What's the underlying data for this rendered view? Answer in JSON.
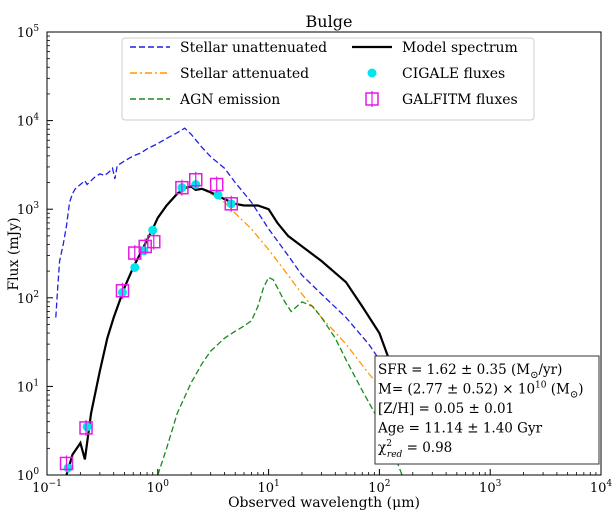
{
  "chart_data": {
    "type": "line",
    "title": "Bulge",
    "xlabel": "Observed wavelength (μm)",
    "ylabel": "Flux (mJy)",
    "xscale": "log",
    "yscale": "log",
    "xlim": [
      0.1,
      10000
    ],
    "ylim": [
      1,
      100000
    ],
    "x_ticks": [
      {
        "value": 0.1,
        "base": "10",
        "exp": "−1"
      },
      {
        "value": 1,
        "base": "10",
        "exp": "0"
      },
      {
        "value": 10,
        "base": "10",
        "exp": "1"
      },
      {
        "value": 100,
        "base": "10",
        "exp": "2"
      },
      {
        "value": 1000,
        "base": "10",
        "exp": "3"
      },
      {
        "value": 10000,
        "base": "10",
        "exp": "4"
      }
    ],
    "y_ticks": [
      {
        "value": 1,
        "base": "10",
        "exp": "0"
      },
      {
        "value": 10,
        "base": "10",
        "exp": "1"
      },
      {
        "value": 100,
        "base": "10",
        "exp": "2"
      },
      {
        "value": 1000,
        "base": "10",
        "exp": "3"
      },
      {
        "value": 10000,
        "base": "10",
        "exp": "4"
      },
      {
        "value": 100000,
        "base": "10",
        "exp": "5"
      }
    ],
    "legend_position": "top",
    "series": [
      {
        "name": "Stellar unattenuated",
        "style": "dashed",
        "color": "#1f1fe6",
        "points": [
          [
            0.12,
            60
          ],
          [
            0.125,
            130
          ],
          [
            0.13,
            260
          ],
          [
            0.14,
            400
          ],
          [
            0.15,
            650
          ],
          [
            0.155,
            900
          ],
          [
            0.16,
            1200
          ],
          [
            0.17,
            1500
          ],
          [
            0.18,
            1700
          ],
          [
            0.2,
            1900
          ],
          [
            0.22,
            2100
          ],
          [
            0.23,
            1900
          ],
          [
            0.25,
            2100
          ],
          [
            0.27,
            2300
          ],
          [
            0.3,
            2500
          ],
          [
            0.33,
            2400
          ],
          [
            0.36,
            2600
          ],
          [
            0.39,
            2900
          ],
          [
            0.41,
            2200
          ],
          [
            0.43,
            3100
          ],
          [
            0.5,
            3500
          ],
          [
            0.6,
            4000
          ],
          [
            0.7,
            4300
          ],
          [
            0.8,
            4800
          ],
          [
            1.0,
            5500
          ],
          [
            1.2,
            6300
          ],
          [
            1.5,
            7300
          ],
          [
            1.75,
            8200
          ],
          [
            2.0,
            7000
          ],
          [
            2.5,
            5000
          ],
          [
            3.0,
            3900
          ],
          [
            4.0,
            2900
          ],
          [
            5.0,
            2000
          ],
          [
            7.0,
            1200
          ],
          [
            10,
            600
          ],
          [
            15,
            300
          ],
          [
            20,
            180
          ],
          [
            30,
            110
          ],
          [
            50,
            60
          ],
          [
            80,
            30
          ],
          [
            100,
            20
          ],
          [
            150,
            8
          ],
          [
            200,
            3
          ]
        ]
      },
      {
        "name": "Stellar attenuated",
        "style": "dashdot",
        "color": "#ff9900",
        "points": [
          [
            0.15,
            1.0
          ],
          [
            0.17,
            1.7
          ],
          [
            0.2,
            2.3
          ],
          [
            0.22,
            1.5
          ],
          [
            0.25,
            5
          ],
          [
            0.3,
            15
          ],
          [
            0.35,
            35
          ],
          [
            0.4,
            60
          ],
          [
            0.5,
            130
          ],
          [
            0.6,
            220
          ],
          [
            0.7,
            320
          ],
          [
            0.8,
            450
          ],
          [
            0.9,
            600
          ],
          [
            1.0,
            800
          ],
          [
            1.2,
            1100
          ],
          [
            1.5,
            1500
          ],
          [
            1.8,
            1750
          ],
          [
            2.0,
            1800
          ],
          [
            2.2,
            1650
          ],
          [
            2.5,
            1700
          ],
          [
            3.0,
            1500
          ],
          [
            4.0,
            1200
          ],
          [
            5.0,
            900
          ],
          [
            7.0,
            600
          ],
          [
            10,
            350
          ],
          [
            15,
            180
          ],
          [
            20,
            110
          ],
          [
            30,
            60
          ],
          [
            50,
            30
          ],
          [
            80,
            14
          ],
          [
            100,
            10
          ],
          [
            150,
            4
          ],
          [
            200,
            1.5
          ]
        ]
      },
      {
        "name": "AGN emission",
        "style": "dashed",
        "color": "#1a8a1a",
        "points": [
          [
            1.0,
            1
          ],
          [
            1.2,
            2
          ],
          [
            1.5,
            5
          ],
          [
            2.0,
            11
          ],
          [
            2.5,
            18
          ],
          [
            3.0,
            25
          ],
          [
            4.0,
            35
          ],
          [
            5.0,
            42
          ],
          [
            6.0,
            48
          ],
          [
            7.0,
            55
          ],
          [
            8.0,
            80
          ],
          [
            9.0,
            130
          ],
          [
            10,
            170
          ],
          [
            11,
            160
          ],
          [
            12,
            130
          ],
          [
            14,
            90
          ],
          [
            16,
            70
          ],
          [
            18,
            80
          ],
          [
            20,
            90
          ],
          [
            25,
            80
          ],
          [
            30,
            60
          ],
          [
            40,
            35
          ],
          [
            50,
            20
          ],
          [
            70,
            9
          ],
          [
            100,
            4
          ],
          [
            130,
            2
          ],
          [
            160,
            1
          ]
        ]
      },
      {
        "name": "Model spectrum",
        "style": "solid",
        "color": "#000000",
        "points": [
          [
            0.15,
            1.0
          ],
          [
            0.17,
            1.7
          ],
          [
            0.2,
            2.3
          ],
          [
            0.22,
            1.5
          ],
          [
            0.25,
            5
          ],
          [
            0.3,
            15
          ],
          [
            0.35,
            35
          ],
          [
            0.4,
            60
          ],
          [
            0.5,
            130
          ],
          [
            0.6,
            220
          ],
          [
            0.7,
            320
          ],
          [
            0.8,
            450
          ],
          [
            0.9,
            600
          ],
          [
            1.0,
            800
          ],
          [
            1.2,
            1100
          ],
          [
            1.5,
            1500
          ],
          [
            1.8,
            1750
          ],
          [
            2.0,
            1800
          ],
          [
            2.2,
            1650
          ],
          [
            2.5,
            1700
          ],
          [
            3.0,
            1550
          ],
          [
            4.0,
            1300
          ],
          [
            5.0,
            1150
          ],
          [
            6.0,
            1100
          ],
          [
            7.0,
            1100
          ],
          [
            8.0,
            1100
          ],
          [
            10,
            1000
          ],
          [
            12,
            700
          ],
          [
            15,
            500
          ],
          [
            20,
            380
          ],
          [
            30,
            260
          ],
          [
            50,
            150
          ],
          [
            70,
            80
          ],
          [
            100,
            40
          ],
          [
            150,
            10
          ],
          [
            200,
            2
          ]
        ]
      },
      {
        "name": "CIGALE fluxes",
        "style": "marker-circle",
        "color": "#00e5ee",
        "points": [
          [
            0.155,
            1.2
          ],
          [
            0.23,
            3.5
          ],
          [
            0.48,
            115
          ],
          [
            0.62,
            220
          ],
          [
            0.75,
            340
          ],
          [
            0.9,
            580
          ],
          [
            1.65,
            1750
          ],
          [
            2.2,
            1900
          ],
          [
            3.5,
            1450
          ],
          [
            4.6,
            1150
          ]
        ]
      },
      {
        "name": "GALFITM fluxes",
        "style": "marker-errbox",
        "color": "#e619e6",
        "points": [
          [
            0.15,
            1.35
          ],
          [
            0.225,
            3.4
          ],
          [
            0.48,
            120
          ],
          [
            0.62,
            320
          ],
          [
            0.77,
            380
          ],
          [
            0.92,
            430
          ],
          [
            1.65,
            1750
          ],
          [
            2.2,
            2150
          ],
          [
            3.4,
            1900
          ],
          [
            4.6,
            1150
          ]
        ]
      }
    ],
    "annotation": {
      "lines": [
        {
          "pre": "SFR = 1.62 ± 0.35 (M",
          "post": "/yr)",
          "sun": true
        },
        {
          "pre": "M= (2.77 ± 0.52) × 10",
          "sup": "10",
          "mid": " (M",
          "post": ")",
          "sun": true
        },
        {
          "pre": "[Z/H] = 0.05 ± 0.01"
        },
        {
          "pre": "Age = 11.14 ± 1.40 Gyr"
        },
        {
          "pre": "χ",
          "sup": "2",
          "sub": "red",
          "post": " = 0.98"
        }
      ]
    }
  }
}
